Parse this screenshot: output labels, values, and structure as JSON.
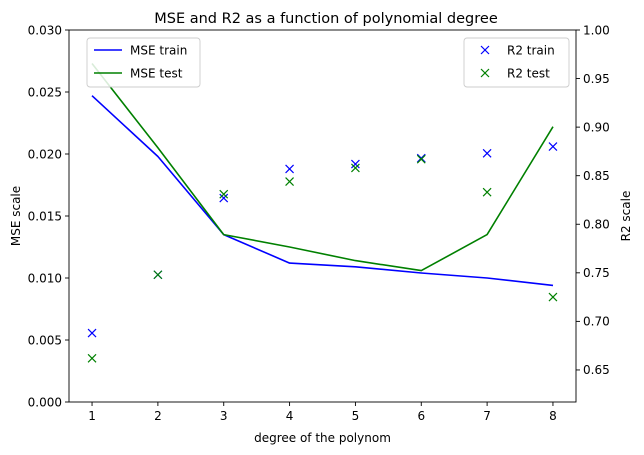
{
  "chart_data": {
    "type": "line",
    "title": "MSE and R2 as a function of polynomial degree",
    "xlabel": "degree of the polynom",
    "ylabel_left": "MSE scale",
    "ylabel_right": "R2 scale",
    "x": [
      1,
      2,
      3,
      4,
      5,
      6,
      7,
      8
    ],
    "xlim": [
      0.65,
      8.35
    ],
    "ylim_left": [
      0,
      0.03
    ],
    "ylim_right": [
      0.617,
      1.0
    ],
    "xticks": [
      1,
      2,
      3,
      4,
      5,
      6,
      7,
      8
    ],
    "xtick_labels": [
      "1",
      "2",
      "3",
      "4",
      "5",
      "6",
      "7",
      "8"
    ],
    "yticks_left": [
      0,
      0.005,
      0.01,
      0.015,
      0.02,
      0.025,
      0.03
    ],
    "ytick_labels_left": [
      "0.000",
      "0.005",
      "0.010",
      "0.015",
      "0.020",
      "0.025",
      "0.030"
    ],
    "yticks_right": [
      0.65,
      0.7,
      0.75,
      0.8,
      0.85,
      0.9,
      0.95,
      1.0
    ],
    "ytick_labels_right": [
      "0.65",
      "0.70",
      "0.75",
      "0.80",
      "0.85",
      "0.90",
      "0.95",
      "1.00"
    ],
    "grid": false,
    "series_left": [
      {
        "name": "MSE train",
        "style": "line",
        "color": "#0000ff",
        "values": [
          0.0247,
          0.0198,
          0.0135,
          0.0112,
          0.0109,
          0.0104,
          0.01,
          0.0094
        ]
      },
      {
        "name": "MSE test",
        "style": "line",
        "color": "#008000",
        "values": [
          0.0273,
          0.0205,
          0.0135,
          0.0125,
          0.0114,
          0.0106,
          0.0135,
          0.0222
        ]
      }
    ],
    "series_right": [
      {
        "name": "R2 train",
        "style": "marker-x",
        "color": "#0000ff",
        "values": [
          0.688,
          0.748,
          0.827,
          0.857,
          0.862,
          0.868,
          0.873,
          0.88
        ]
      },
      {
        "name": "R2 test",
        "style": "marker-x",
        "color": "#008000",
        "values": [
          0.662,
          0.748,
          0.831,
          0.844,
          0.858,
          0.867,
          0.833,
          0.725
        ]
      }
    ],
    "legend_left_placement": "top-left",
    "legend_right_placement": "top-right"
  }
}
